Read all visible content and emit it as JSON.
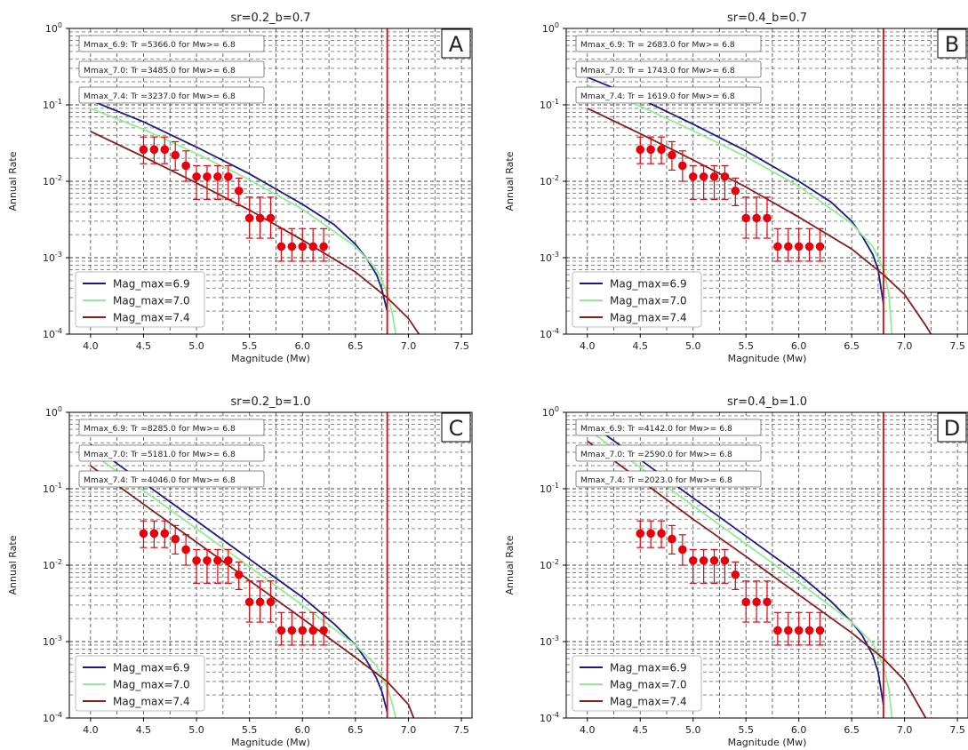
{
  "chart_data": [
    {
      "type": "line",
      "panel_letter": "A",
      "title": "sr=0.2_b=0.7",
      "xlabel": "Magnitude (Mw)",
      "ylabel": "Annual Rate",
      "xlim": [
        3.8,
        7.6
      ],
      "ylim": [
        0.0001,
        1
      ],
      "yscale": "log",
      "grid": true,
      "legend_position": "lower-left",
      "x_ticks": [
        "4.0",
        "4.5",
        "5.0",
        "5.5",
        "6.0",
        "6.5",
        "7.0",
        "7.5"
      ],
      "y_ticks": [
        "10^0",
        "10^-1",
        "10^-2",
        "10^-3",
        "10^-4"
      ],
      "annotations": [
        "Mmax_6.9: Tr =5366.0 for Mw>= 6.8",
        "Mmax_7.0: Tr =3485.0 for Mw>= 6.8",
        "Mmax_7.4: Tr =3237.0 for Mw>= 6.8"
      ],
      "vline_x": 6.8,
      "series": [
        {
          "name": "Mag_max=6.9",
          "color": "#1a1a8c",
          "x": [
            4.0,
            4.5,
            5.0,
            5.5,
            6.0,
            6.3,
            6.5,
            6.6,
            6.7,
            6.75,
            6.8
          ],
          "y": [
            0.115,
            0.06,
            0.028,
            0.0125,
            0.005,
            0.0027,
            0.0015,
            0.001,
            0.0006,
            0.00038,
            0.0002
          ]
        },
        {
          "name": "Mag_max=7.0",
          "color": "#90ee90",
          "x": [
            4.0,
            4.5,
            5.0,
            5.5,
            6.0,
            6.5,
            6.7,
            6.8,
            6.85,
            6.88
          ],
          "y": [
            0.09,
            0.048,
            0.023,
            0.0105,
            0.0043,
            0.0014,
            0.0007,
            0.00035,
            0.00018,
            0.0001
          ]
        },
        {
          "name": "Mag_max=7.4",
          "color": "#8b1a1a",
          "x": [
            4.0,
            4.5,
            5.0,
            5.5,
            6.0,
            6.5,
            6.8,
            7.0,
            7.1
          ],
          "y": [
            0.045,
            0.021,
            0.0095,
            0.0042,
            0.0017,
            0.00065,
            0.0003,
            0.00016,
            0.0001
          ]
        }
      ],
      "observed": {
        "x": [
          4.5,
          4.6,
          4.7,
          4.8,
          4.9,
          5.0,
          5.1,
          5.2,
          5.3,
          5.4,
          5.5,
          5.6,
          5.7,
          5.8,
          5.9,
          6.0,
          6.1,
          6.2
        ],
        "y": [
          0.026,
          0.026,
          0.026,
          0.022,
          0.016,
          0.0115,
          0.0115,
          0.0115,
          0.0115,
          0.0075,
          0.0033,
          0.0033,
          0.0033,
          0.0014,
          0.0014,
          0.0014,
          0.0014,
          0.0014
        ],
        "lower": [
          0.017,
          0.017,
          0.017,
          0.014,
          0.01,
          0.0058,
          0.0058,
          0.0058,
          0.0058,
          0.0048,
          0.0018,
          0.0018,
          0.0018,
          0.0009,
          0.0009,
          0.0009,
          0.0009,
          0.0009
        ],
        "upper": [
          0.038,
          0.038,
          0.038,
          0.033,
          0.025,
          0.016,
          0.016,
          0.016,
          0.016,
          0.011,
          0.0062,
          0.0062,
          0.0062,
          0.0024,
          0.0024,
          0.0024,
          0.0024,
          0.0024
        ]
      }
    },
    {
      "type": "line",
      "panel_letter": "B",
      "title": "sr=0.4_b=0.7",
      "xlabel": "Magnitude (Mw)",
      "ylabel": "Annual Rate",
      "xlim": [
        3.8,
        7.6
      ],
      "ylim": [
        0.0001,
        1
      ],
      "yscale": "log",
      "grid": true,
      "legend_position": "lower-left",
      "x_ticks": [
        "4.0",
        "4.5",
        "5.0",
        "5.5",
        "6.0",
        "6.5",
        "7.0",
        "7.5"
      ],
      "y_ticks": [
        "10^0",
        "10^-1",
        "10^-2",
        "10^-3",
        "10^-4"
      ],
      "annotations": [
        "Mmax_6.9: Tr = 2683.0 for Mw>= 6.8",
        "Mmax_7.0: Tr = 1743.0 for Mw>= 6.8",
        "Mmax_7.4: Tr = 1619.0 for Mw>= 6.8"
      ],
      "vline_x": 6.8,
      "series": [
        {
          "name": "Mag_max=6.9",
          "color": "#1a1a8c",
          "x": [
            4.0,
            4.5,
            5.0,
            5.5,
            6.0,
            6.3,
            6.5,
            6.6,
            6.7,
            6.75,
            6.8
          ],
          "y": [
            0.23,
            0.12,
            0.056,
            0.025,
            0.01,
            0.0054,
            0.003,
            0.0019,
            0.0011,
            0.0007,
            0.00025
          ]
        },
        {
          "name": "Mag_max=7.0",
          "color": "#90ee90",
          "x": [
            4.0,
            4.5,
            5.0,
            5.5,
            6.0,
            6.5,
            6.7,
            6.8,
            6.85,
            6.88
          ],
          "y": [
            0.18,
            0.096,
            0.046,
            0.021,
            0.0086,
            0.0028,
            0.0014,
            0.0007,
            0.00035,
            0.0001
          ]
        },
        {
          "name": "Mag_max=7.4",
          "color": "#8b1a1a",
          "x": [
            4.0,
            4.5,
            5.0,
            5.5,
            6.0,
            6.5,
            6.8,
            7.0,
            7.2,
            7.25
          ],
          "y": [
            0.09,
            0.042,
            0.019,
            0.0084,
            0.0034,
            0.0013,
            0.0006,
            0.00033,
            0.00013,
            0.0001
          ]
        }
      ],
      "observed": {
        "x": [
          4.5,
          4.6,
          4.7,
          4.8,
          4.9,
          5.0,
          5.1,
          5.2,
          5.3,
          5.4,
          5.5,
          5.6,
          5.7,
          5.8,
          5.9,
          6.0,
          6.1,
          6.2
        ],
        "y": [
          0.026,
          0.026,
          0.026,
          0.022,
          0.016,
          0.0115,
          0.0115,
          0.0115,
          0.0115,
          0.0075,
          0.0033,
          0.0033,
          0.0033,
          0.0014,
          0.0014,
          0.0014,
          0.0014,
          0.0014
        ],
        "lower": [
          0.017,
          0.017,
          0.017,
          0.014,
          0.01,
          0.0058,
          0.0058,
          0.0058,
          0.0058,
          0.0048,
          0.0018,
          0.0018,
          0.0018,
          0.0009,
          0.0009,
          0.0009,
          0.0009,
          0.0009
        ],
        "upper": [
          0.038,
          0.038,
          0.038,
          0.033,
          0.025,
          0.016,
          0.016,
          0.016,
          0.016,
          0.011,
          0.0062,
          0.0062,
          0.0062,
          0.0024,
          0.0024,
          0.0024,
          0.0024,
          0.0024
        ]
      }
    },
    {
      "type": "line",
      "panel_letter": "C",
      "title": "sr=0.2_b=1.0",
      "xlabel": "Magnitude (Mw)",
      "ylabel": "Annual Rate",
      "xlim": [
        3.8,
        7.6
      ],
      "ylim": [
        0.0001,
        1
      ],
      "yscale": "log",
      "grid": true,
      "legend_position": "lower-left",
      "x_ticks": [
        "4.0",
        "4.5",
        "5.0",
        "5.5",
        "6.0",
        "6.5",
        "7.0",
        "7.5"
      ],
      "y_ticks": [
        "10^0",
        "10^-1",
        "10^-2",
        "10^-3",
        "10^-4"
      ],
      "annotations": [
        "Mmax_6.9: Tr =8285.0 for Mw>= 6.8",
        "Mmax_7.0: Tr =5181.0 for Mw>= 6.8",
        "Mmax_7.4: Tr =4046.0 for Mw>= 6.8"
      ],
      "vline_x": 6.8,
      "series": [
        {
          "name": "Mag_max=6.9",
          "color": "#1a1a8c",
          "x": [
            4.0,
            4.5,
            5.0,
            5.5,
            6.0,
            6.3,
            6.5,
            6.6,
            6.7,
            6.75,
            6.8
          ],
          "y": [
            0.38,
            0.12,
            0.038,
            0.012,
            0.0038,
            0.0017,
            0.0009,
            0.00058,
            0.00033,
            0.00022,
            0.00012
          ]
        },
        {
          "name": "Mag_max=7.0",
          "color": "#90ee90",
          "x": [
            4.0,
            4.5,
            5.0,
            5.5,
            6.0,
            6.5,
            6.7,
            6.8,
            6.85,
            6.88
          ],
          "y": [
            0.3,
            0.095,
            0.03,
            0.0095,
            0.003,
            0.0009,
            0.00048,
            0.00025,
            0.00015,
            0.0001
          ]
        },
        {
          "name": "Mag_max=7.4",
          "color": "#8b1a1a",
          "x": [
            4.0,
            4.5,
            5.0,
            5.5,
            6.0,
            6.5,
            6.8,
            7.0,
            7.05
          ],
          "y": [
            0.2,
            0.063,
            0.02,
            0.0063,
            0.002,
            0.00062,
            0.0003,
            0.00015,
            0.0001
          ]
        }
      ],
      "observed": {
        "x": [
          4.5,
          4.6,
          4.7,
          4.8,
          4.9,
          5.0,
          5.1,
          5.2,
          5.3,
          5.4,
          5.5,
          5.6,
          5.7,
          5.8,
          5.9,
          6.0,
          6.1,
          6.2
        ],
        "y": [
          0.026,
          0.026,
          0.026,
          0.022,
          0.016,
          0.0115,
          0.0115,
          0.0115,
          0.0115,
          0.0075,
          0.0033,
          0.0033,
          0.0033,
          0.0014,
          0.0014,
          0.0014,
          0.0014,
          0.0014
        ],
        "lower": [
          0.017,
          0.017,
          0.017,
          0.014,
          0.01,
          0.0058,
          0.0058,
          0.0058,
          0.0058,
          0.0048,
          0.0018,
          0.0018,
          0.0018,
          0.0009,
          0.0009,
          0.0009,
          0.0009,
          0.0009
        ],
        "upper": [
          0.038,
          0.038,
          0.038,
          0.033,
          0.025,
          0.016,
          0.016,
          0.016,
          0.016,
          0.011,
          0.0062,
          0.0062,
          0.0062,
          0.0024,
          0.0024,
          0.0024,
          0.0024,
          0.0024
        ]
      }
    },
    {
      "type": "line",
      "panel_letter": "D",
      "title": "sr=0.4_b=1.0",
      "xlabel": "Magnitude (Mw)",
      "ylabel": "Annual Rate",
      "xlim": [
        3.8,
        7.6
      ],
      "ylim": [
        0.0001,
        1
      ],
      "yscale": "log",
      "grid": true,
      "legend_position": "lower-left",
      "x_ticks": [
        "4.0",
        "4.5",
        "5.0",
        "5.5",
        "6.0",
        "6.5",
        "7.0",
        "7.5"
      ],
      "y_ticks": [
        "10^0",
        "10^-1",
        "10^-2",
        "10^-3",
        "10^-4"
      ],
      "annotations": [
        "Mmax_6.9: Tr =4142.0 for Mw>= 6.8",
        "Mmax_7.0: Tr =2590.0 for Mw>= 6.8",
        "Mmax_7.4: Tr =2023.0 for Mw>= 6.8"
      ],
      "vline_x": 6.8,
      "series": [
        {
          "name": "Mag_max=6.9",
          "color": "#1a1a8c",
          "x": [
            4.0,
            4.5,
            5.0,
            5.5,
            6.0,
            6.3,
            6.5,
            6.6,
            6.7,
            6.75,
            6.8
          ],
          "y": [
            0.75,
            0.24,
            0.076,
            0.024,
            0.0076,
            0.0034,
            0.0018,
            0.0012,
            0.00066,
            0.0004,
            0.00015
          ]
        },
        {
          "name": "Mag_max=7.0",
          "color": "#90ee90",
          "x": [
            4.0,
            4.5,
            5.0,
            5.5,
            6.0,
            6.5,
            6.7,
            6.8,
            6.85,
            6.88
          ],
          "y": [
            0.6,
            0.19,
            0.06,
            0.019,
            0.006,
            0.0018,
            0.00095,
            0.00048,
            0.00025,
            0.0001
          ]
        },
        {
          "name": "Mag_max=7.4",
          "color": "#8b1a1a",
          "x": [
            4.0,
            4.5,
            5.0,
            5.5,
            6.0,
            6.5,
            6.8,
            7.0,
            7.2
          ],
          "y": [
            0.42,
            0.13,
            0.04,
            0.013,
            0.0041,
            0.0013,
            0.0006,
            0.00031,
            0.0001
          ]
        }
      ],
      "observed": {
        "x": [
          4.5,
          4.6,
          4.7,
          4.8,
          4.9,
          5.0,
          5.1,
          5.2,
          5.3,
          5.4,
          5.5,
          5.6,
          5.7,
          5.8,
          5.9,
          6.0,
          6.1,
          6.2
        ],
        "y": [
          0.026,
          0.026,
          0.026,
          0.022,
          0.016,
          0.0115,
          0.0115,
          0.0115,
          0.0115,
          0.0075,
          0.0033,
          0.0033,
          0.0033,
          0.0014,
          0.0014,
          0.0014,
          0.0014,
          0.0014
        ],
        "lower": [
          0.017,
          0.017,
          0.017,
          0.014,
          0.01,
          0.0058,
          0.0058,
          0.0058,
          0.0058,
          0.0048,
          0.0018,
          0.0018,
          0.0018,
          0.0009,
          0.0009,
          0.0009,
          0.0009,
          0.0009
        ],
        "upper": [
          0.038,
          0.038,
          0.038,
          0.033,
          0.025,
          0.016,
          0.016,
          0.016,
          0.016,
          0.011,
          0.0062,
          0.0062,
          0.0062,
          0.0024,
          0.0024,
          0.0024,
          0.0024,
          0.0024
        ]
      }
    }
  ]
}
